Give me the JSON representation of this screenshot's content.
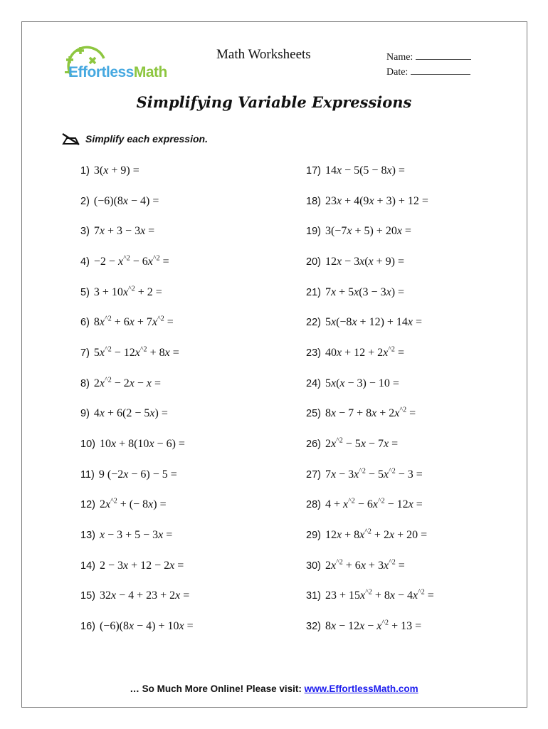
{
  "header": {
    "logo": {
      "part1": "Effortless",
      "part2": "Math",
      "colors": {
        "blue": "#45a8e0",
        "green": "#8dc63f"
      }
    },
    "worksheet_label": "Math Worksheets",
    "name_label": "Name:",
    "date_label": "Date:"
  },
  "title": "Simplifying Variable Expressions",
  "instruction": {
    "icon": "pencil-crossed-icon",
    "text": "Simplify each expression."
  },
  "questions": [
    {
      "n": "1)",
      "expr": "3(x + 9) ="
    },
    {
      "n": "2)",
      "expr": "(−6)(8x − 4) ="
    },
    {
      "n": "3)",
      "expr": "7x + 3 − 3x ="
    },
    {
      "n": "4)",
      "expr": "−2 − x^2 − 6x^2 ="
    },
    {
      "n": "5)",
      "expr": "3 + 10x^2 + 2 ="
    },
    {
      "n": "6)",
      "expr": "8x^2 + 6x + 7x^2 ="
    },
    {
      "n": "7)",
      "expr": "5x^2 − 12x^2 + 8x ="
    },
    {
      "n": "8)",
      "expr": "2x^2 − 2x − x ="
    },
    {
      "n": "9)",
      "expr": "4x + 6(2 − 5x) ="
    },
    {
      "n": "10)",
      "expr": "10x + 8(10x − 6) ="
    },
    {
      "n": "11)",
      "expr": "9 (−2x − 6) − 5 ="
    },
    {
      "n": "12)",
      "expr": "2x^2 + (− 8x) ="
    },
    {
      "n": "13)",
      "expr": "x − 3 + 5 − 3x ="
    },
    {
      "n": "14)",
      "expr": "2 − 3x + 12 − 2x ="
    },
    {
      "n": "15)",
      "expr": "32x − 4 + 23 + 2x ="
    },
    {
      "n": "16)",
      "expr": "(−6)(8x − 4) + 10x ="
    },
    {
      "n": "17)",
      "expr": "14x − 5(5 −  8x) ="
    },
    {
      "n": "18)",
      "expr": "23x + 4(9x + 3) + 12 ="
    },
    {
      "n": "19)",
      "expr": "3(−7x + 5) + 20x ="
    },
    {
      "n": "20)",
      "expr": "12x − 3x(x + 9) ="
    },
    {
      "n": "21)",
      "expr": "7x + 5x(3 − 3x) ="
    },
    {
      "n": "22)",
      "expr": "5x(−8x + 12) + 14x ="
    },
    {
      "n": "23)",
      "expr": "40x + 12 + 2x^2 ="
    },
    {
      "n": "24)",
      "expr": "5x(x − 3) − 10 ="
    },
    {
      "n": "25)",
      "expr": "8x − 7 + 8x + 2x^2 ="
    },
    {
      "n": "26)",
      "expr": "2x^2 − 5x − 7x ="
    },
    {
      "n": "27)",
      "expr": "7x − 3x^2 − 5x^2 − 3 ="
    },
    {
      "n": "28)",
      "expr": "4 + x^2 − 6x^2 − 12x ="
    },
    {
      "n": "29)",
      "expr": "12x + 8x^2 + 2x + 20 ="
    },
    {
      "n": "30)",
      "expr": "2x^2 + 6x + 3x^2 ="
    },
    {
      "n": "31)",
      "expr": "23 + 15x^2 + 8x − 4x^2 ="
    },
    {
      "n": "32)",
      "expr": "8x − 12x − x^2 + 13 ="
    }
  ],
  "footer": {
    "text": "… So Much More Online! Please visit: ",
    "link": "www.EffortlessMath.com",
    "link_color": "#1a1aee"
  }
}
